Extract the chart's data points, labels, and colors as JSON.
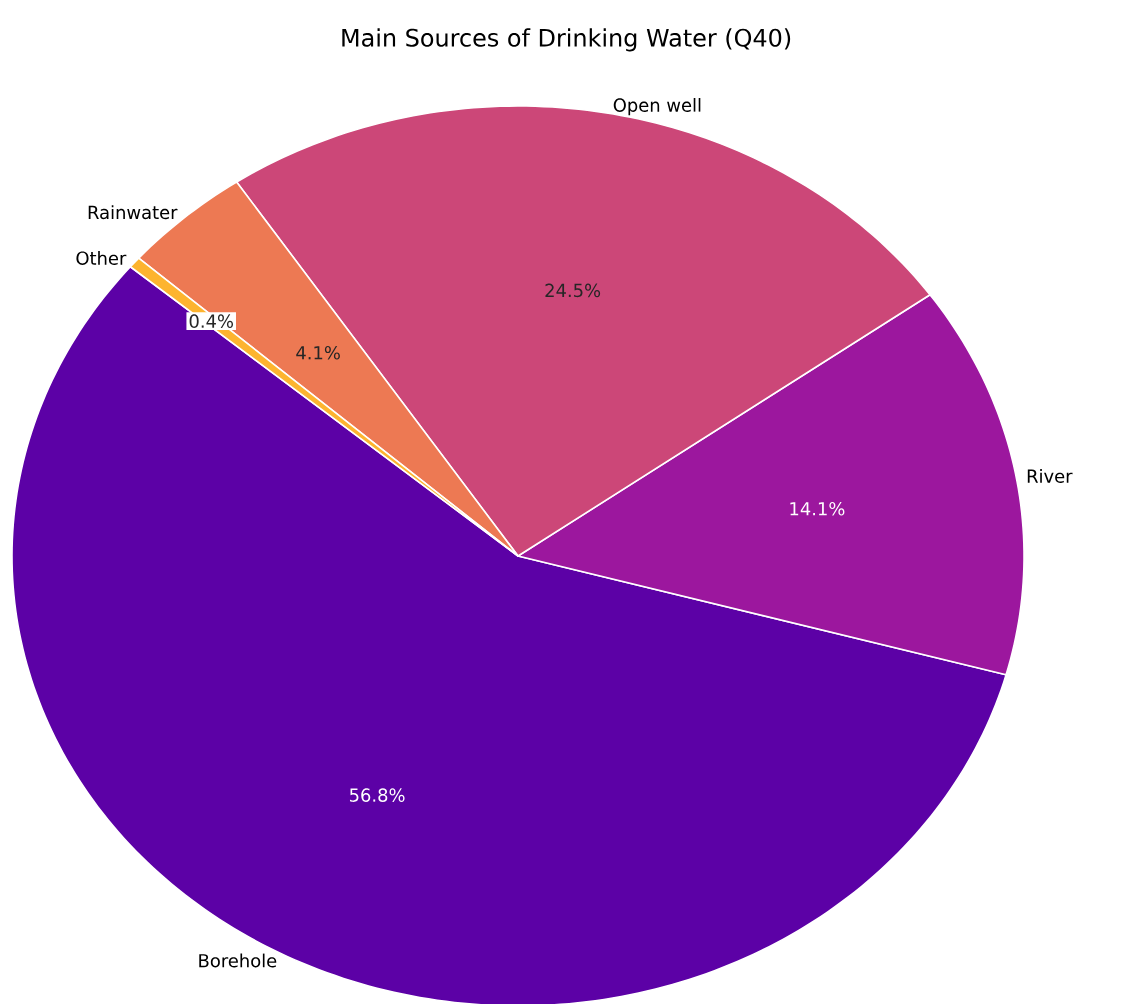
{
  "chart_data": {
    "type": "pie",
    "title": "Main Sources of Drinking Water (Q40)",
    "categories": [
      "Borehole",
      "River",
      "Open well",
      "Rainwater",
      "Other"
    ],
    "values": [
      56.8,
      14.1,
      24.5,
      4.1,
      0.4
    ],
    "colors": [
      "#5c01a6",
      "#9c179e",
      "#cc4778",
      "#ed7953",
      "#fdb42f"
    ],
    "value_labels": [
      "56.8%",
      "14.1%",
      "24.5%",
      "4.1%",
      "0.4%"
    ]
  }
}
